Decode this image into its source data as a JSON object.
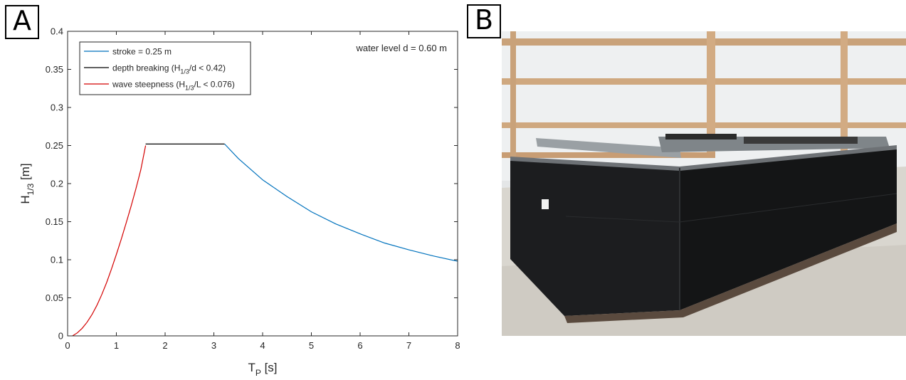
{
  "panels": {
    "a_label": "A",
    "b_label": "B"
  },
  "chart_data": {
    "type": "line",
    "xlabel_main": "T",
    "xlabel_sub": "P",
    "xlabel_unit": " [s]",
    "ylabel_main": "H",
    "ylabel_sub": "1/3",
    "ylabel_unit": " [m]",
    "xlim": [
      0,
      8
    ],
    "ylim": [
      0,
      0.4
    ],
    "x_ticks": [
      0,
      1,
      2,
      3,
      4,
      5,
      6,
      7,
      8
    ],
    "y_ticks": [
      "0",
      "0.05",
      "0.1",
      "0.15",
      "0.2",
      "0.25",
      "0.3",
      "0.35",
      "0.4"
    ],
    "annotation": "water level d = 0.60 m",
    "legend_placement": "top-left",
    "legend": [
      {
        "pre": "stroke = 0.25 m",
        "sub": "",
        "post": "",
        "color": "#0072BD"
      },
      {
        "pre": "depth breaking (H",
        "sub": "1/3",
        "post": "/d < 0.42)",
        "color": "#000000"
      },
      {
        "pre": "wave steepness (H",
        "sub": "1/3",
        "post": "/L < 0.076)",
        "color": "#D40000"
      }
    ],
    "series": [
      {
        "name": "wave steepness (H1/3/L < 0.076)",
        "color": "#D40000",
        "x": [
          0.1,
          0.2,
          0.3,
          0.4,
          0.5,
          0.6,
          0.7,
          0.8,
          0.9,
          1.0,
          1.1,
          1.2,
          1.3,
          1.4,
          1.5,
          1.6
        ],
        "y": [
          0.0,
          0.004,
          0.01,
          0.018,
          0.028,
          0.04,
          0.054,
          0.07,
          0.088,
          0.107,
          0.127,
          0.148,
          0.17,
          0.193,
          0.218,
          0.25
        ]
      },
      {
        "name": "depth breaking (H1/3/d < 0.42)",
        "color": "#000000",
        "x": [
          1.6,
          3.22
        ],
        "y": [
          0.252,
          0.252
        ]
      },
      {
        "name": "stroke = 0.25 m",
        "color": "#0072BD",
        "x": [
          3.22,
          3.5,
          4.0,
          4.5,
          5.0,
          5.5,
          6.0,
          6.5,
          7.0,
          7.5,
          8.0
        ],
        "y": [
          0.252,
          0.233,
          0.205,
          0.183,
          0.163,
          0.147,
          0.134,
          0.122,
          0.113,
          0.105,
          0.098
        ]
      }
    ]
  }
}
